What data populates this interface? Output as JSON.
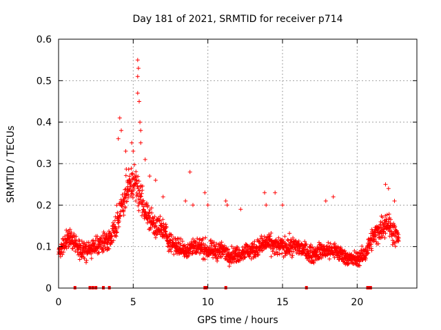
{
  "chart_data": {
    "type": "scatter",
    "title": "Day 181 of 2021, SRMTID for receiver p714",
    "xlabel": "GPS time / hours",
    "ylabel": "SRMTID / TECUs",
    "xlim": [
      0,
      24
    ],
    "ylim": [
      0,
      0.6
    ],
    "xticks": [
      0,
      5,
      10,
      15,
      20
    ],
    "xtick_labels": [
      "0",
      "5",
      "10",
      "15",
      "20"
    ],
    "yticks": [
      0,
      0.1,
      0.2,
      0.3,
      0.4,
      0.5,
      0.6
    ],
    "ytick_labels": [
      "0",
      "0.1",
      "0.2",
      "0.3",
      "0.4",
      "0.5",
      "0.6"
    ],
    "grid": true,
    "marker": "+",
    "color": "#ff0000",
    "trend": [
      [
        0.0,
        0.08
      ],
      [
        0.5,
        0.12
      ],
      [
        1.0,
        0.11
      ],
      [
        1.5,
        0.09
      ],
      [
        2.0,
        0.09
      ],
      [
        2.5,
        0.1
      ],
      [
        3.0,
        0.11
      ],
      [
        3.5,
        0.12
      ],
      [
        4.0,
        0.17
      ],
      [
        4.5,
        0.23
      ],
      [
        5.0,
        0.26
      ],
      [
        5.5,
        0.22
      ],
      [
        6.0,
        0.17
      ],
      [
        6.5,
        0.15
      ],
      [
        7.0,
        0.14
      ],
      [
        7.5,
        0.11
      ],
      [
        8.0,
        0.1
      ],
      [
        8.5,
        0.09
      ],
      [
        9.0,
        0.1
      ],
      [
        9.5,
        0.1
      ],
      [
        10.0,
        0.09
      ],
      [
        10.5,
        0.09
      ],
      [
        11.0,
        0.09
      ],
      [
        11.5,
        0.08
      ],
      [
        12.0,
        0.08
      ],
      [
        12.5,
        0.09
      ],
      [
        13.0,
        0.09
      ],
      [
        13.5,
        0.1
      ],
      [
        14.0,
        0.11
      ],
      [
        14.5,
        0.1
      ],
      [
        15.0,
        0.1
      ],
      [
        15.5,
        0.1
      ],
      [
        16.0,
        0.1
      ],
      [
        16.5,
        0.09
      ],
      [
        17.0,
        0.08
      ],
      [
        17.5,
        0.09
      ],
      [
        18.0,
        0.09
      ],
      [
        18.5,
        0.09
      ],
      [
        19.0,
        0.08
      ],
      [
        19.5,
        0.07
      ],
      [
        20.0,
        0.07
      ],
      [
        20.5,
        0.08
      ],
      [
        21.0,
        0.12
      ],
      [
        21.5,
        0.14
      ],
      [
        22.0,
        0.16
      ],
      [
        22.5,
        0.13
      ],
      [
        22.8,
        0.12
      ]
    ],
    "spikes": [
      [
        4.0,
        0.36
      ],
      [
        4.1,
        0.41
      ],
      [
        4.2,
        0.38
      ],
      [
        4.5,
        0.33
      ],
      [
        4.9,
        0.35
      ],
      [
        5.0,
        0.33
      ],
      [
        5.3,
        0.55
      ],
      [
        5.35,
        0.53
      ],
      [
        5.3,
        0.51
      ],
      [
        5.3,
        0.47
      ],
      [
        5.4,
        0.45
      ],
      [
        5.45,
        0.4
      ],
      [
        5.5,
        0.38
      ],
      [
        5.5,
        0.35
      ],
      [
        5.8,
        0.31
      ],
      [
        6.1,
        0.27
      ],
      [
        6.5,
        0.26
      ],
      [
        7.0,
        0.22
      ],
      [
        8.5,
        0.21
      ],
      [
        8.8,
        0.28
      ],
      [
        9.0,
        0.2
      ],
      [
        9.8,
        0.23
      ],
      [
        10.0,
        0.2
      ],
      [
        11.2,
        0.21
      ],
      [
        11.3,
        0.2
      ],
      [
        12.2,
        0.19
      ],
      [
        13.8,
        0.23
      ],
      [
        13.9,
        0.2
      ],
      [
        14.5,
        0.23
      ],
      [
        15.0,
        0.2
      ],
      [
        17.9,
        0.21
      ],
      [
        18.4,
        0.22
      ],
      [
        21.9,
        0.25
      ],
      [
        22.1,
        0.24
      ],
      [
        22.5,
        0.21
      ]
    ],
    "zero_values_x": [
      1.1,
      2.1,
      2.3,
      2.5,
      3.0,
      3.4,
      9.8,
      9.9,
      11.2,
      16.6,
      20.7,
      20.8,
      20.9
    ]
  }
}
